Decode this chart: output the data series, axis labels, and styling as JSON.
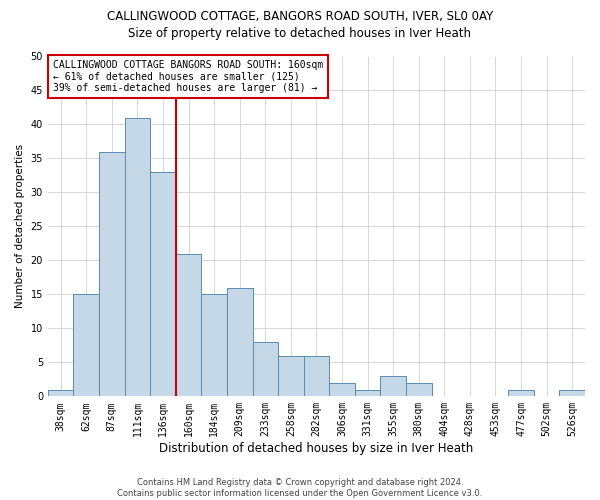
{
  "title1": "CALLINGWOOD COTTAGE, BANGORS ROAD SOUTH, IVER, SL0 0AY",
  "title2": "Size of property relative to detached houses in Iver Heath",
  "xlabel": "Distribution of detached houses by size in Iver Heath",
  "ylabel": "Number of detached properties",
  "categories": [
    "38sqm",
    "62sqm",
    "87sqm",
    "111sqm",
    "136sqm",
    "160sqm",
    "184sqm",
    "209sqm",
    "233sqm",
    "258sqm",
    "282sqm",
    "306sqm",
    "331sqm",
    "355sqm",
    "380sqm",
    "404sqm",
    "428sqm",
    "453sqm",
    "477sqm",
    "502sqm",
    "526sqm"
  ],
  "values": [
    1,
    15,
    36,
    41,
    33,
    21,
    15,
    16,
    8,
    6,
    6,
    2,
    1,
    3,
    2,
    0,
    0,
    0,
    1,
    0,
    1
  ],
  "bar_color": "#c5d8e8",
  "bar_edge_color": "#5a8ab0",
  "vline_x": 4.5,
  "vline_color": "#cc0000",
  "annotation_text": "CALLINGWOOD COTTAGE BANGORS ROAD SOUTH: 160sqm\n← 61% of detached houses are smaller (125)\n39% of semi-detached houses are larger (81) →",
  "annotation_box_color": "#ffffff",
  "annotation_box_edge": "#cc0000",
  "ylim": [
    0,
    50
  ],
  "yticks": [
    0,
    5,
    10,
    15,
    20,
    25,
    30,
    35,
    40,
    45,
    50
  ],
  "footer1": "Contains HM Land Registry data © Crown copyright and database right 2024.",
  "footer2": "Contains public sector information licensed under the Open Government Licence v3.0.",
  "background_color": "#ffffff",
  "grid_color": "#d0d0d0",
  "title1_fontsize": 8.5,
  "title2_fontsize": 8.5,
  "xlabel_fontsize": 8.5,
  "ylabel_fontsize": 7.5,
  "tick_fontsize": 7,
  "annotation_fontsize": 7,
  "footer_fontsize": 6
}
